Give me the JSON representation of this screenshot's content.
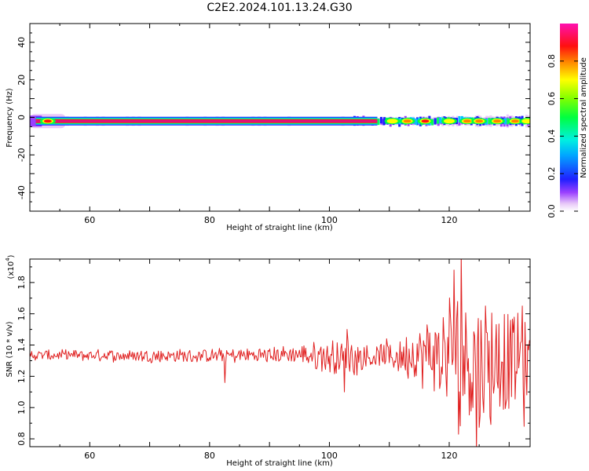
{
  "figure": {
    "title": "C2E2.2024.101.13.24.G30"
  },
  "chart_data": [
    {
      "type": "heatmap",
      "xlabel": "Height of straight line (km)",
      "ylabel": "Frequency (Hz)",
      "xlim": [
        50,
        133.5
      ],
      "ylim": [
        -50,
        50
      ],
      "xticks": [
        60,
        80,
        100,
        120
      ],
      "yticks": [
        -40,
        -20,
        0,
        20,
        40
      ],
      "band_center_hz": -2,
      "colorbar": {
        "label": "Normalized spectral amplitude",
        "range": [
          0,
          1
        ],
        "ticks": [
          "0.0",
          "0.2",
          "0.4",
          "0.6",
          "0.8"
        ],
        "tick_values": [
          0,
          0.2,
          0.4,
          0.6,
          0.8
        ],
        "colormap": "rainbow"
      },
      "peaks": [
        {
          "x": 53,
          "amp": 0.9
        },
        {
          "x": 110.5,
          "amp": 0.75
        },
        {
          "x": 113,
          "amp": 0.85
        },
        {
          "x": 116,
          "amp": 0.95
        },
        {
          "x": 120,
          "amp": 0.7
        },
        {
          "x": 123,
          "amp": 0.8
        },
        {
          "x": 125,
          "amp": 0.85
        },
        {
          "x": 128,
          "amp": 0.85
        },
        {
          "x": 131,
          "amp": 0.8
        },
        {
          "x": 133,
          "amp": 0.75
        }
      ]
    },
    {
      "type": "line",
      "xlabel": "Height of straight line (km)",
      "ylabel": "SNR (10 * v/v)",
      "y_multiplier": "(x10",
      "y_multiplier_exp": "4",
      "xlim": [
        50,
        133.5
      ],
      "ylim": [
        0.75,
        1.95
      ],
      "xticks": [
        60,
        80,
        100,
        120
      ],
      "yticks": [
        0.8,
        1.0,
        1.2,
        1.4,
        1.6,
        1.8
      ],
      "ytick_labels": [
        "0.8",
        "1.0",
        "1.2",
        "1.4",
        "1.6",
        "1.8"
      ],
      "line_color": "#e02020",
      "series_envelope": [
        {
          "x": 50,
          "mean": 1.335,
          "amp": 0.03
        },
        {
          "x": 80,
          "mean": 1.33,
          "amp": 0.04
        },
        {
          "x": 95,
          "mean": 1.34,
          "amp": 0.05
        },
        {
          "x": 102,
          "mean": 1.32,
          "amp": 0.12
        },
        {
          "x": 108,
          "mean": 1.33,
          "amp": 0.07
        },
        {
          "x": 115,
          "mean": 1.33,
          "amp": 0.16
        },
        {
          "x": 120,
          "mean": 1.33,
          "amp": 0.35
        },
        {
          "x": 125,
          "mean": 1.3,
          "amp": 0.45
        },
        {
          "x": 130,
          "mean": 1.3,
          "amp": 0.28
        },
        {
          "x": 133.5,
          "mean": 1.3,
          "amp": 0.3
        }
      ],
      "notable_points": [
        {
          "x": 82.5,
          "y": 1.16
        },
        {
          "x": 102.5,
          "y": 1.1
        },
        {
          "x": 103.0,
          "y": 1.5
        },
        {
          "x": 120.8,
          "y": 1.88
        },
        {
          "x": 122.0,
          "y": 1.98
        },
        {
          "x": 121.5,
          "y": 0.83
        },
        {
          "x": 124.5,
          "y": 0.72
        },
        {
          "x": 126.0,
          "y": 1.65
        },
        {
          "x": 132.2,
          "y": 1.65
        },
        {
          "x": 132.5,
          "y": 0.88
        }
      ]
    }
  ]
}
